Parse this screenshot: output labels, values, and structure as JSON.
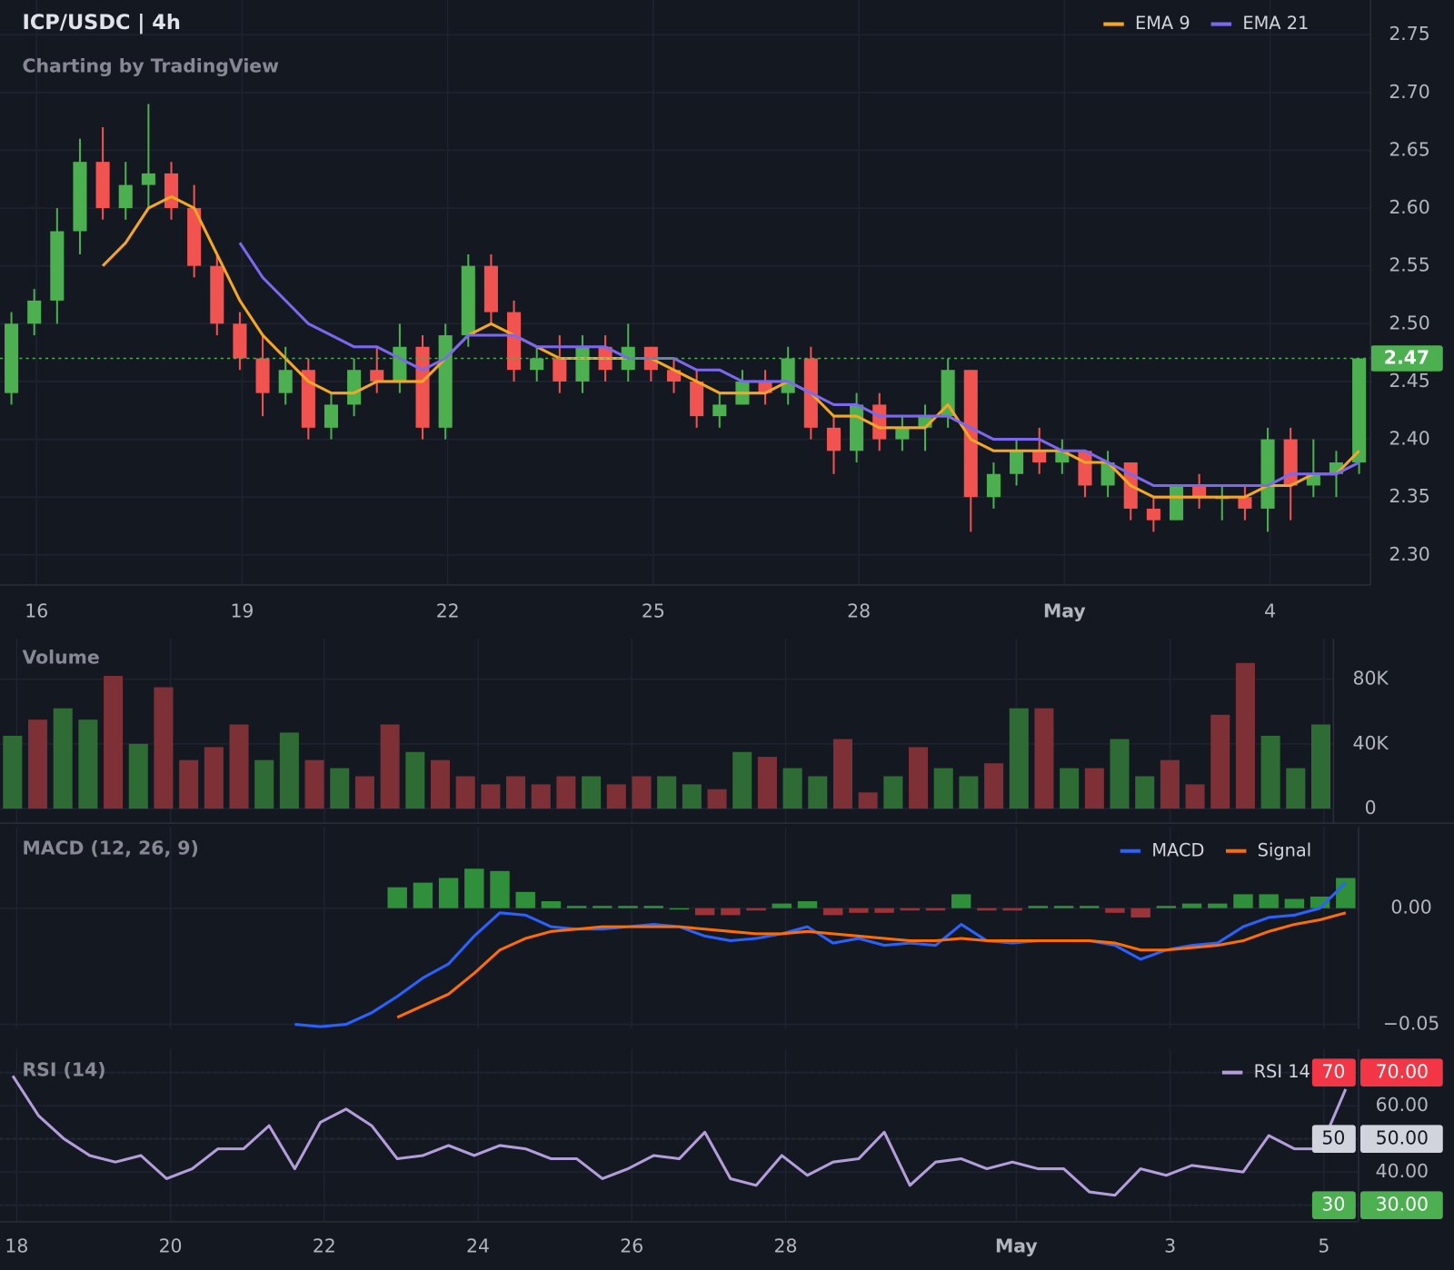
{
  "chart_data": [
    {
      "type": "candlestick",
      "title": "ICP/USDC | 4h",
      "subtitle": "Charting by TradingView",
      "open": [
        2.44,
        2.5,
        2.52,
        2.58,
        2.64,
        2.6,
        2.62,
        2.63,
        2.6,
        2.55,
        2.5,
        2.47,
        2.44,
        2.46,
        2.41,
        2.43,
        2.46,
        2.45,
        2.48,
        2.41,
        2.49,
        2.55,
        2.51,
        2.46,
        2.47,
        2.45,
        2.48,
        2.46,
        2.48,
        2.46,
        2.45,
        2.42,
        2.43,
        2.45,
        2.44,
        2.47,
        2.41,
        2.39,
        2.43,
        2.4,
        2.41,
        2.42,
        2.46,
        2.35,
        2.37,
        2.39,
        2.38,
        2.39,
        2.36,
        2.38,
        2.34,
        2.33,
        2.36,
        2.35,
        2.35,
        2.34,
        2.4,
        2.36,
        2.37,
        2.38
      ],
      "high": [
        2.51,
        2.53,
        2.6,
        2.66,
        2.67,
        2.64,
        2.69,
        2.64,
        2.62,
        2.56,
        2.51,
        2.49,
        2.48,
        2.47,
        2.44,
        2.47,
        2.48,
        2.5,
        2.49,
        2.5,
        2.56,
        2.56,
        2.52,
        2.48,
        2.49,
        2.49,
        2.49,
        2.5,
        2.48,
        2.47,
        2.46,
        2.44,
        2.46,
        2.46,
        2.48,
        2.48,
        2.42,
        2.44,
        2.44,
        2.42,
        2.43,
        2.47,
        2.46,
        2.38,
        2.4,
        2.41,
        2.4,
        2.39,
        2.39,
        2.38,
        2.35,
        2.36,
        2.37,
        2.36,
        2.36,
        2.41,
        2.41,
        2.4,
        2.39,
        2.47
      ],
      "low": [
        2.43,
        2.49,
        2.5,
        2.56,
        2.59,
        2.59,
        2.6,
        2.59,
        2.54,
        2.49,
        2.46,
        2.42,
        2.43,
        2.4,
        2.4,
        2.42,
        2.44,
        2.44,
        2.4,
        2.4,
        2.48,
        2.5,
        2.45,
        2.45,
        2.44,
        2.44,
        2.45,
        2.45,
        2.45,
        2.44,
        2.41,
        2.41,
        2.43,
        2.43,
        2.43,
        2.4,
        2.37,
        2.38,
        2.39,
        2.39,
        2.39,
        2.41,
        2.32,
        2.34,
        2.36,
        2.37,
        2.37,
        2.35,
        2.35,
        2.33,
        2.32,
        2.33,
        2.34,
        2.33,
        2.33,
        2.32,
        2.33,
        2.35,
        2.35,
        2.37
      ],
      "close": [
        2.5,
        2.52,
        2.58,
        2.64,
        2.6,
        2.62,
        2.63,
        2.6,
        2.55,
        2.5,
        2.47,
        2.44,
        2.46,
        2.41,
        2.43,
        2.46,
        2.45,
        2.48,
        2.41,
        2.49,
        2.55,
        2.51,
        2.46,
        2.47,
        2.45,
        2.48,
        2.46,
        2.48,
        2.46,
        2.45,
        2.42,
        2.43,
        2.45,
        2.44,
        2.47,
        2.41,
        2.39,
        2.43,
        2.4,
        2.41,
        2.42,
        2.46,
        2.35,
        2.37,
        2.39,
        2.38,
        2.39,
        2.36,
        2.38,
        2.34,
        2.33,
        2.36,
        2.35,
        2.35,
        2.34,
        2.4,
        2.36,
        2.37,
        2.38,
        2.47
      ],
      "up_color": "#4caf50",
      "down_color": "#f05350",
      "series": [
        {
          "name": "EMA 9",
          "color": "#f5a623",
          "values": [
            null,
            null,
            null,
            null,
            2.55,
            2.57,
            2.6,
            2.61,
            2.6,
            2.56,
            2.52,
            2.49,
            2.47,
            2.45,
            2.44,
            2.44,
            2.45,
            2.45,
            2.45,
            2.47,
            2.49,
            2.5,
            2.49,
            2.48,
            2.47,
            2.47,
            2.47,
            2.47,
            2.47,
            2.46,
            2.45,
            2.44,
            2.44,
            2.44,
            2.45,
            2.44,
            2.42,
            2.42,
            2.41,
            2.41,
            2.41,
            2.43,
            2.4,
            2.39,
            2.39,
            2.39,
            2.39,
            2.38,
            2.38,
            2.36,
            2.35,
            2.35,
            2.35,
            2.35,
            2.35,
            2.36,
            2.36,
            2.37,
            2.37,
            2.39
          ]
        },
        {
          "name": "EMA 21",
          "color": "#7b68ee",
          "values": [
            null,
            null,
            null,
            null,
            null,
            null,
            null,
            null,
            null,
            null,
            2.57,
            2.54,
            2.52,
            2.5,
            2.49,
            2.48,
            2.48,
            2.47,
            2.46,
            2.47,
            2.49,
            2.49,
            2.49,
            2.48,
            2.48,
            2.48,
            2.48,
            2.47,
            2.47,
            2.47,
            2.46,
            2.46,
            2.45,
            2.45,
            2.45,
            2.44,
            2.43,
            2.43,
            2.42,
            2.42,
            2.42,
            2.42,
            2.41,
            2.4,
            2.4,
            2.4,
            2.39,
            2.39,
            2.38,
            2.37,
            2.36,
            2.36,
            2.36,
            2.36,
            2.36,
            2.36,
            2.37,
            2.37,
            2.37,
            2.38
          ]
        }
      ],
      "xlim": [
        0,
        60
      ],
      "xticks": [
        {
          "value": 1.6,
          "label": "16"
        },
        {
          "value": 10.6,
          "label": "19"
        },
        {
          "value": 19.6,
          "label": "22"
        },
        {
          "value": 28.6,
          "label": "25"
        },
        {
          "value": 37.6,
          "label": "28"
        },
        {
          "value": 46.6,
          "label": "May"
        },
        {
          "value": 55.6,
          "label": "4"
        }
      ],
      "ylim": [
        2.274,
        2.78
      ],
      "yticks": [
        {
          "value": 2.3,
          "label": "2.30"
        },
        2.35,
        {
          "value": 2.4,
          "label": "2.40"
        },
        2.45,
        {
          "value": 2.5,
          "label": "2.50"
        },
        2.55,
        {
          "value": 2.6,
          "label": "2.60"
        },
        2.65,
        {
          "value": 2.7,
          "label": "2.70"
        },
        2.75
      ],
      "last_price": 2.47,
      "last_price_color": "#4caf50",
      "grid": true
    },
    {
      "type": "bar",
      "title": "Volume",
      "values": [
        45000,
        55000,
        62000,
        55000,
        82000,
        40000,
        75000,
        30000,
        38000,
        52000,
        30000,
        47000,
        30000,
        25000,
        20000,
        52000,
        35000,
        30000,
        20000,
        15000,
        20000,
        15000,
        20000,
        20000,
        15000,
        20000,
        20000,
        15000,
        12000,
        35000,
        32000,
        25000,
        20000,
        43000,
        10000,
        20000,
        38000,
        25000,
        20000,
        28000,
        62000,
        62000,
        25000,
        25000,
        43000,
        20000,
        30000,
        15000,
        58000,
        90000,
        45000,
        25000,
        52000
      ],
      "colors": [
        "#2f6b35",
        "#7d3036",
        "#2f6b35",
        "#2f6b35",
        "#7d3036",
        "#2f6b35",
        "#7d3036",
        "#7d3036",
        "#7d3036",
        "#7d3036",
        "#2f6b35",
        "#2f6b35",
        "#7d3036",
        "#2f6b35",
        "#7d3036",
        "#7d3036",
        "#2f6b35",
        "#7d3036",
        "#7d3036",
        "#7d3036",
        "#7d3036",
        "#7d3036",
        "#7d3036",
        "#2f6b35",
        "#7d3036",
        "#7d3036",
        "#2f6b35",
        "#2f6b35",
        "#7d3036",
        "#2f6b35",
        "#7d3036",
        "#2f6b35",
        "#2f6b35",
        "#7d3036",
        "#7d3036",
        "#2f6b35",
        "#7d3036",
        "#2f6b35",
        "#2f6b35",
        "#7d3036",
        "#2f6b35",
        "#7d3036",
        "#2f6b35",
        "#7d3036",
        "#2f6b35",
        "#2f6b35",
        "#7d3036",
        "#7d3036",
        "#7d3036",
        "#7d3036",
        "#2f6b35",
        "#2f6b35",
        "#2f6b35"
      ],
      "xlim": [
        0,
        53
      ],
      "ylim": [
        -9000,
        105000
      ],
      "yticks": [
        0,
        {
          "value": 40000,
          "label": "40K"
        },
        {
          "value": 80000,
          "label": "80K"
        }
      ],
      "grid": true
    },
    {
      "type": "macd",
      "title": "MACD (12, 26, 9)",
      "series": [
        {
          "name": "MACD",
          "color": "#2962ff",
          "values": [
            null,
            null,
            null,
            null,
            null,
            null,
            null,
            null,
            null,
            null,
            null,
            -0.05,
            -0.051,
            -0.05,
            -0.045,
            -0.038,
            -0.03,
            -0.024,
            -0.012,
            -0.002,
            -0.003,
            -0.008,
            -0.009,
            -0.009,
            -0.008,
            -0.007,
            -0.008,
            -0.012,
            -0.014,
            -0.013,
            -0.011,
            -0.008,
            -0.015,
            -0.013,
            -0.016,
            -0.015,
            -0.016,
            -0.007,
            -0.014,
            -0.015,
            -0.014,
            -0.014,
            -0.014,
            -0.016,
            -0.022,
            -0.018,
            -0.016,
            -0.015,
            -0.008,
            -0.004,
            -0.003,
            0,
            0.011
          ]
        },
        {
          "name": "Signal",
          "color": "#ff6d00",
          "values": [
            null,
            null,
            null,
            null,
            null,
            null,
            null,
            null,
            null,
            null,
            null,
            null,
            null,
            null,
            null,
            -0.047,
            -0.042,
            -0.037,
            -0.028,
            -0.018,
            -0.013,
            -0.01,
            -0.009,
            -0.008,
            -0.008,
            -0.008,
            -0.008,
            -0.009,
            -0.01,
            -0.011,
            -0.011,
            -0.01,
            -0.011,
            -0.012,
            -0.013,
            -0.014,
            -0.014,
            -0.013,
            -0.014,
            -0.014,
            -0.014,
            -0.014,
            -0.014,
            -0.015,
            -0.018,
            -0.018,
            -0.017,
            -0.016,
            -0.014,
            -0.01,
            -0.007,
            -0.005,
            -0.002
          ]
        }
      ],
      "histogram": [
        null,
        null,
        null,
        null,
        null,
        null,
        null,
        null,
        null,
        null,
        null,
        null,
        null,
        null,
        null,
        0.009,
        0.011,
        0.013,
        0.017,
        0.016,
        0.007,
        0.003,
        0.001,
        0.001,
        0.001,
        0.001,
        0,
        -0.003,
        -0.003,
        -0.001,
        0.002,
        0.003,
        -0.003,
        -0.002,
        -0.002,
        -0.001,
        -0.001,
        0.006,
        -0.001,
        -0.001,
        0.001,
        0.001,
        0.001,
        -0.002,
        -0.004,
        0.001,
        0.002,
        0.002,
        0.006,
        0.006,
        0.004,
        0.005,
        0.013
      ],
      "up_color": "#2f8f3a",
      "down_color": "#9c3338",
      "xlim": [
        0,
        53
      ],
      "ylim": [
        -0.052,
        0.035
      ],
      "yticks": [
        {
          "value": 0,
          "label": "0.00"
        },
        {
          "value": -0.05,
          "label": "−0.05"
        }
      ],
      "grid": true
    },
    {
      "type": "line",
      "title": "RSI (14)",
      "series": [
        {
          "name": "RSI 14",
          "color": "#b39ddb",
          "values": [
            69,
            57,
            50,
            45,
            43,
            45,
            38,
            41,
            47,
            47,
            54,
            41,
            55,
            59,
            54,
            44,
            45,
            48,
            45,
            48,
            47,
            44,
            44,
            38,
            41,
            45,
            44,
            52,
            38,
            36,
            45,
            39,
            43,
            44,
            52,
            36,
            43,
            44,
            41,
            43,
            41,
            41,
            34,
            33,
            41,
            39,
            42,
            41,
            40,
            51,
            47,
            47,
            65
          ]
        }
      ],
      "xlim": [
        0,
        53
      ],
      "xticks": [
        {
          "value": 0.65,
          "label": "18"
        },
        {
          "value": 6.65,
          "label": "20"
        },
        {
          "value": 12.65,
          "label": "22"
        },
        {
          "value": 18.65,
          "label": "24"
        },
        {
          "value": 24.65,
          "label": "26"
        },
        {
          "value": 30.65,
          "label": "28"
        },
        {
          "value": 39.65,
          "label": "May"
        },
        {
          "value": 45.65,
          "label": "3"
        },
        {
          "value": 51.65,
          "label": "5"
        }
      ],
      "ylim": [
        25,
        77
      ],
      "yticks": [
        {
          "value": 30,
          "label": "30.00"
        },
        {
          "value": 40,
          "label": "40.00"
        },
        {
          "value": 50,
          "label": "50.00"
        },
        {
          "value": 60,
          "label": "60.00"
        },
        {
          "value": 70,
          "label": "70.00"
        }
      ],
      "levels": [
        70,
        50,
        30
      ],
      "level_colors": [
        "#f23645",
        "#d1d4dc",
        "#4caf50"
      ],
      "level_text_colors": [
        "#ffffff",
        "#131722",
        "#ffffff"
      ],
      "grid": true
    }
  ]
}
